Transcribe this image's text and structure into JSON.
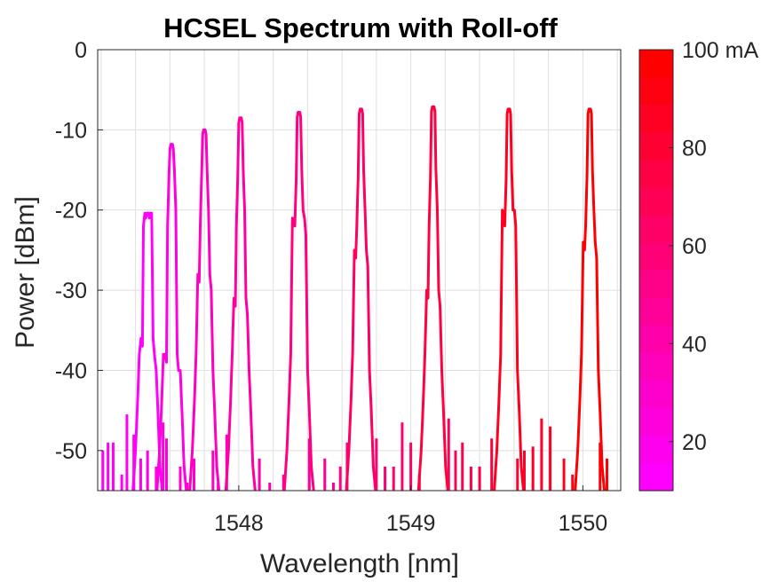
{
  "chart_data": {
    "type": "line",
    "title": "HCSEL Spectrum with Roll-off",
    "xlabel": "Wavelength [nm]",
    "ylabel": "Power [dBm]",
    "xlim": [
      1547.18,
      1550.22
    ],
    "ylim": [
      -55,
      0
    ],
    "xticks": [
      1548,
      1549,
      1550
    ],
    "yticks": [
      0,
      -10,
      -20,
      -30,
      -40,
      -50
    ],
    "grid": true,
    "noise_floor": -55,
    "peaks": [
      {
        "wavelength": 1547.47,
        "peak": -20.4,
        "shoulder": -36.0
      },
      {
        "wavelength": 1547.61,
        "peak": -11.8,
        "shoulder": -38.0
      },
      {
        "wavelength": 1547.8,
        "peak": -10.0,
        "shoulder": -28.0
      },
      {
        "wavelength": 1548.01,
        "peak": -8.5,
        "shoulder": -31.0
      },
      {
        "wavelength": 1548.35,
        "peak": -7.8,
        "shoulder": -21.0
      },
      {
        "wavelength": 1548.71,
        "peak": -7.4,
        "shoulder": -25.0
      },
      {
        "wavelength": 1549.13,
        "peak": -7.1,
        "shoulder": -30.0
      },
      {
        "wavelength": 1549.57,
        "peak": -7.4,
        "shoulder": -20.0
      },
      {
        "wavelength": 1550.04,
        "peak": -7.4,
        "shoulder": -24.0
      }
    ],
    "noise_spikes": [
      [
        1547.21,
        -50
      ],
      [
        1547.24,
        -49
      ],
      [
        1547.27,
        -49
      ],
      [
        1547.32,
        -53
      ],
      [
        1547.35,
        -45.5
      ],
      [
        1547.39,
        -48
      ],
      [
        1547.43,
        -51
      ],
      [
        1547.47,
        -50
      ],
      [
        1547.52,
        -52
      ],
      [
        1547.56,
        -46.5
      ],
      [
        1547.58,
        -48.5
      ],
      [
        1547.66,
        -52
      ],
      [
        1547.7,
        -54
      ],
      [
        1547.74,
        -51
      ],
      [
        1547.85,
        -50
      ],
      [
        1547.88,
        -54
      ],
      [
        1547.93,
        -48
      ],
      [
        1548.12,
        -51
      ],
      [
        1548.18,
        -54
      ],
      [
        1548.26,
        -53
      ],
      [
        1548.41,
        -48.5
      ],
      [
        1548.5,
        -51
      ],
      [
        1548.55,
        -54
      ],
      [
        1548.59,
        -52
      ],
      [
        1548.63,
        -49
      ],
      [
        1548.8,
        -48.5
      ],
      [
        1548.85,
        -52
      ],
      [
        1548.9,
        -52
      ],
      [
        1548.95,
        -46.5
      ],
      [
        1549.0,
        -49
      ],
      [
        1549.05,
        -53
      ],
      [
        1549.22,
        -46
      ],
      [
        1549.26,
        -50
      ],
      [
        1549.3,
        -49
      ],
      [
        1549.35,
        -52
      ],
      [
        1549.4,
        -52
      ],
      [
        1549.47,
        -48.5
      ],
      [
        1549.62,
        -51
      ],
      [
        1549.66,
        -50
      ],
      [
        1549.71,
        -49.5
      ],
      [
        1549.76,
        -46
      ],
      [
        1549.81,
        -47
      ],
      [
        1549.89,
        -51
      ],
      [
        1549.94,
        -53
      ],
      [
        1550.1,
        -49
      ],
      [
        1550.14,
        -51
      ]
    ],
    "colorbar": {
      "min": 10,
      "max": 100,
      "unit_label": "mA",
      "tick_labels": [
        "100 mA",
        "80",
        "60",
        "40",
        "20"
      ],
      "tick_values": [
        100,
        80,
        60,
        40,
        20
      ],
      "low_color": "#ff00ff",
      "high_color": "#ff0000"
    }
  }
}
